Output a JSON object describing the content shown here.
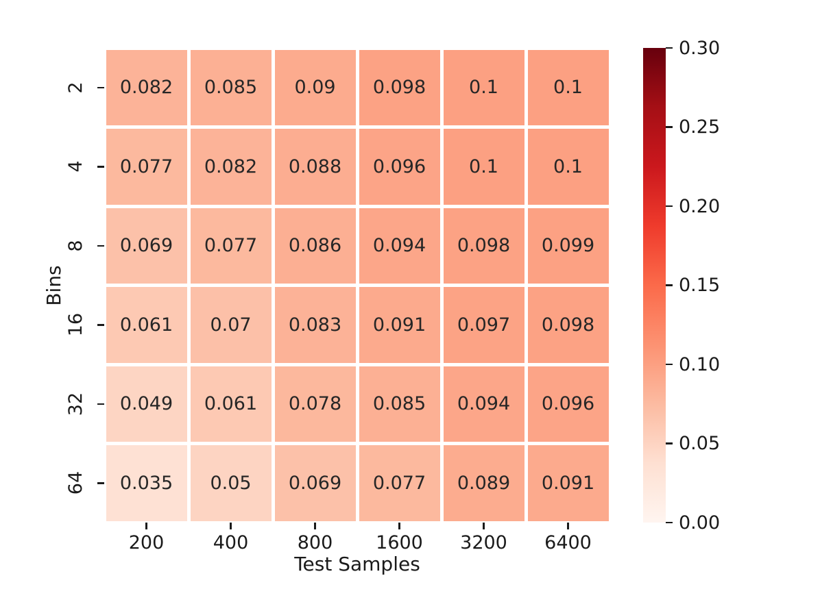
{
  "figure": {
    "background": "#ffffff",
    "text_color": "#1a1a1a",
    "annotation_color": "#262626",
    "cell_border_color": "#ffffff"
  },
  "chart_data": {
    "type": "heatmap",
    "title": "",
    "xlabel": "Test Samples",
    "ylabel": "Bins",
    "x_categories": [
      "200",
      "400",
      "800",
      "1600",
      "3200",
      "6400"
    ],
    "y_categories": [
      "2",
      "4",
      "8",
      "16",
      "32",
      "64"
    ],
    "rows": [
      [
        0.082,
        0.085,
        0.09,
        0.098,
        0.1,
        0.1
      ],
      [
        0.077,
        0.082,
        0.088,
        0.096,
        0.1,
        0.1
      ],
      [
        0.069,
        0.077,
        0.086,
        0.094,
        0.098,
        0.099
      ],
      [
        0.061,
        0.07,
        0.083,
        0.091,
        0.097,
        0.098
      ],
      [
        0.049,
        0.061,
        0.078,
        0.085,
        0.094,
        0.096
      ],
      [
        0.035,
        0.05,
        0.069,
        0.077,
        0.089,
        0.091
      ]
    ],
    "vmin": 0.0,
    "vmax": 0.3,
    "grid_on": false,
    "legend_position": "colorbar-right",
    "colormap": {
      "name": "Reds",
      "anchors": [
        "#fff5f0",
        "#fee0d2",
        "#fcbba1",
        "#fc9272",
        "#fb6a4a",
        "#ef3b2c",
        "#cb181d",
        "#a50f15",
        "#67000d"
      ]
    },
    "colorbar": {
      "tick_labels": [
        "0.30",
        "0.25",
        "0.20",
        "0.15",
        "0.10",
        "0.05",
        "0.00"
      ],
      "tick_values": [
        0.3,
        0.25,
        0.2,
        0.15,
        0.1,
        0.05,
        0.0
      ]
    }
  }
}
